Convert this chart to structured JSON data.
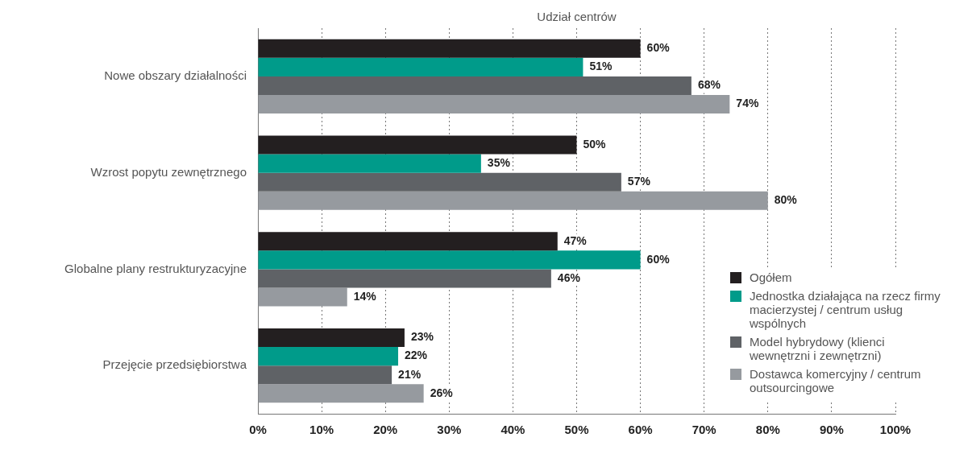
{
  "chart_data": {
    "type": "bar",
    "orientation": "horizontal",
    "xlabel": "Udział centrów",
    "categories": [
      "Nowe obszary działalności",
      "Wzrost popytu zewnętrznego",
      "Globalne plany restrukturyzacyjne",
      "Przejęcie przedsiębiorstwa"
    ],
    "series": [
      {
        "name": "Ogółem",
        "color": "#231f20",
        "values": [
          60,
          50,
          47,
          23
        ],
        "value_labels": [
          "60%",
          "50%",
          "47%",
          "23%"
        ]
      },
      {
        "name": "Jednostka działająca na rzecz firmy macierzystej / centrum usług wspólnych",
        "color": "#009b8a",
        "values": [
          51,
          35,
          60,
          22
        ],
        "value_labels": [
          "51%",
          "35%",
          "60%",
          "22%"
        ]
      },
      {
        "name": "Model hybrydowy (klienci wewnętrzni i zewnętrzni)",
        "color": "#5f6266",
        "values": [
          68,
          57,
          46,
          21
        ],
        "value_labels": [
          "68%",
          "57%",
          "46%",
          "21%"
        ]
      },
      {
        "name": "Dostawca komercyjny / centrum outsourcingowe",
        "color": "#969a9f",
        "values": [
          74,
          80,
          14,
          26
        ],
        "value_labels": [
          "74%",
          "80%",
          "14%",
          "26%"
        ]
      }
    ],
    "xlim": [
      0,
      100
    ],
    "xticks": [
      {
        "value": 0,
        "label": "0%"
      },
      {
        "value": 10,
        "label": "10%"
      },
      {
        "value": 20,
        "label": "20%"
      },
      {
        "value": 30,
        "label": "30%"
      },
      {
        "value": 40,
        "label": "40%"
      },
      {
        "value": 50,
        "label": "50%"
      },
      {
        "value": 60,
        "label": "60%"
      },
      {
        "value": 70,
        "label": "70%"
      },
      {
        "value": 80,
        "label": "80%"
      },
      {
        "value": 90,
        "label": "90%"
      },
      {
        "value": 100,
        "label": "100%"
      }
    ],
    "grid": "x",
    "legend": "bottom right"
  }
}
